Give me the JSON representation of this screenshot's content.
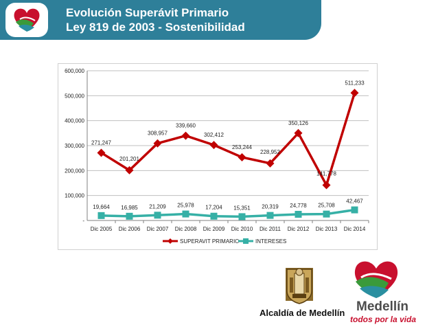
{
  "header": {
    "title_line1": "Evolución Superávit  Primario",
    "title_line2": "Ley 819 de 2003 - Sostenibilidad"
  },
  "icons": {
    "header_logo": "medellin-heart-logo-icon",
    "crest": "alcaldia-crest-icon",
    "footer_logo": "medellin-heart-logo-icon"
  },
  "footer": {
    "alcaldia": "Alcaldía de Medellín",
    "brand": "Medellín",
    "tagline": "todos por la vida"
  },
  "colors": {
    "header_band": "#2e7f99",
    "superavit": "#c00000",
    "intereses": "#36b0a6",
    "logo_red": "#c8102e",
    "logo_green": "#3a9a3a",
    "logo_teal": "#2a8fa0"
  },
  "chart_data": {
    "type": "line",
    "categories": [
      "Dic 2005",
      "Dic 2006",
      "Dic 2007",
      "Dic 2008",
      "Dic 2009",
      "Dic 2010",
      "Dic 2011",
      "Dic 2012",
      "Dic 2013",
      "Dic 2014"
    ],
    "ylim": [
      0,
      600000
    ],
    "yticks": [
      0,
      100000,
      200000,
      300000,
      400000,
      500000,
      600000
    ],
    "ytick_labels": [
      "-",
      "100,000",
      "200,000",
      "300,000",
      "400,000",
      "500,000",
      "600,000"
    ],
    "grid": true,
    "legend_position": "bottom",
    "series": [
      {
        "name": "SUPERAVIT PRIMARIO",
        "color": "#c00000",
        "marker": "diamond",
        "values": [
          271247,
          201201,
          308957,
          339660,
          302412,
          253244,
          228952,
          350126,
          141778,
          511233
        ],
        "labels": [
          "271,247",
          "201,201",
          "308,957",
          "339,660",
          "302,412",
          "253,244",
          "228,952",
          "350,126",
          "141,778",
          "511,233"
        ]
      },
      {
        "name": "INTERESES",
        "color": "#36b0a6",
        "marker": "square",
        "values": [
          19664,
          16985,
          21209,
          25978,
          17204,
          15351,
          20319,
          24778,
          25708,
          42467
        ],
        "labels": [
          "19,664",
          "16,985",
          "21,209",
          "25,978",
          "17,204",
          "15,351",
          "20,319",
          "24,778",
          "25,708",
          "42,467"
        ]
      }
    ]
  }
}
